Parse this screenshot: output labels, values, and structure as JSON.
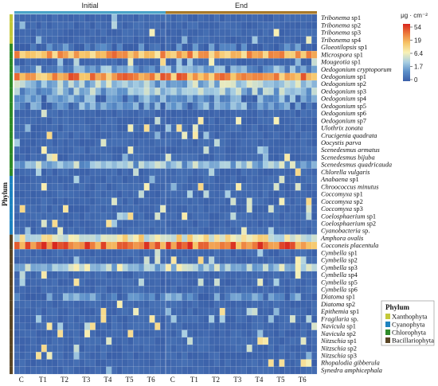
{
  "chart_data": {
    "type": "heatmap",
    "column_groups": [
      {
        "label": "Initial",
        "color": "#4aa3c8"
      },
      {
        "label": "End",
        "color": "#a8792a"
      }
    ],
    "x_tick_labels": [
      "C",
      "T1",
      "T2",
      "T3",
      "T4",
      "T5",
      "T6",
      "C",
      "T1",
      "T2",
      "T3",
      "T4",
      "T5",
      "T6"
    ],
    "columns_per_group": 28,
    "rows": [
      {
        "genus": "Tribonema",
        "epithet": "sp1",
        "phylum": "Xanthophyta",
        "base": 0.0
      },
      {
        "genus": "Tribonema",
        "epithet": "sp2",
        "phylum": "Xanthophyta",
        "base": 0.0
      },
      {
        "genus": "Tribonema",
        "epithet": "sp3",
        "phylum": "Xanthophyta",
        "base": 0.0
      },
      {
        "genus": "Tribonema",
        "epithet": "sp4",
        "phylum": "Xanthophyta",
        "base": 0.0
      },
      {
        "genus": "Gloeotilopsis",
        "epithet": "sp1",
        "phylum": "Chlorophyta",
        "base": 0.05
      },
      {
        "genus": "Microspora",
        "epithet": "sp1",
        "phylum": "Chlorophyta",
        "base": 0.7
      },
      {
        "genus": "Mougeotia",
        "epithet": "sp1",
        "phylum": "Chlorophyta",
        "base": 0.0
      },
      {
        "genus": "Oedogonium",
        "epithet": "cryptoporum",
        "phylum": "Chlorophyta",
        "base": 0.2
      },
      {
        "genus": "Oedogonium",
        "epithet": "sp1",
        "phylum": "Chlorophyta",
        "base": 0.75
      },
      {
        "genus": "Oedogonium",
        "epithet": "sp2",
        "phylum": "Chlorophyta",
        "base": 0.3
      },
      {
        "genus": "Oedogonium",
        "epithet": "sp3",
        "phylum": "Chlorophyta",
        "base": 0.25
      },
      {
        "genus": "Oedogonium",
        "epithet": "sp4",
        "phylum": "Chlorophyta",
        "base": 0.15
      },
      {
        "genus": "Oedogonium",
        "epithet": "sp5",
        "phylum": "Chlorophyta",
        "base": 0.15
      },
      {
        "genus": "Oedogonium",
        "epithet": "sp6",
        "phylum": "Chlorophyta",
        "base": 0.0
      },
      {
        "genus": "Oedogonium",
        "epithet": "sp7",
        "phylum": "Chlorophyta",
        "base": 0.0
      },
      {
        "genus": "Ulothrix",
        "epithet": "zonata",
        "phylum": "Chlorophyta",
        "base": 0.0
      },
      {
        "genus": "Crucigenia",
        "epithet": "quadrata",
        "phylum": "Chlorophyta",
        "base": 0.0
      },
      {
        "genus": "Oocystis",
        "epithet": "parva",
        "phylum": "Chlorophyta",
        "base": 0.0
      },
      {
        "genus": "Scenedesmus",
        "epithet": "armatus",
        "phylum": "Chlorophyta",
        "base": 0.0
      },
      {
        "genus": "Scenedesmus",
        "epithet": "bijuba",
        "phylum": "Chlorophyta",
        "base": 0.0
      },
      {
        "genus": "Scenedesmus",
        "epithet": "quadricauda",
        "phylum": "Chlorophyta",
        "base": 0.28
      },
      {
        "genus": "Chlorella",
        "epithet": "vulgaris",
        "phylum": "Chlorophyta",
        "base": 0.0
      },
      {
        "genus": "Anabaena",
        "epithet": "sp1",
        "phylum": "Cyanophyta",
        "base": 0.0
      },
      {
        "genus": "Chroococcus",
        "epithet": "minutus",
        "phylum": "Cyanophyta",
        "base": 0.0
      },
      {
        "genus": "Coccomyxa",
        "epithet": "sp1",
        "phylum": "Cyanophyta",
        "base": 0.0
      },
      {
        "genus": "Coccomyxa",
        "epithet": "sp2",
        "phylum": "Cyanophyta",
        "base": 0.0
      },
      {
        "genus": "Coccomyxa",
        "epithet": "sp3",
        "phylum": "Cyanophyta",
        "base": 0.0
      },
      {
        "genus": "Coelosphaerium",
        "epithet": "sp1",
        "phylum": "Cyanophyta",
        "base": 0.0
      },
      {
        "genus": "Coelosphaerium",
        "epithet": "sp2",
        "phylum": "Cyanophyta",
        "base": 0.0
      },
      {
        "genus": "Cyanobacteria",
        "epithet": "sp.",
        "phylum": "Cyanophyta",
        "base": 0.0
      },
      {
        "genus": "Amphora",
        "epithet": "ovalis",
        "phylum": "Bacillariophyta",
        "base": 0.5
      },
      {
        "genus": "Cocconeis",
        "epithet": "placentula",
        "phylum": "Bacillariophyta",
        "base": 0.82
      },
      {
        "genus": "Cymbella",
        "epithet": "sp1",
        "phylum": "Bacillariophyta",
        "base": 0.0
      },
      {
        "genus": "Cymbella",
        "epithet": "sp2",
        "phylum": "Bacillariophyta",
        "base": 0.0
      },
      {
        "genus": "Cymbella",
        "epithet": "sp3",
        "phylum": "Bacillariophyta",
        "base": 0.35
      },
      {
        "genus": "Cymbella",
        "epithet": "sp4",
        "phylum": "Bacillariophyta",
        "base": 0.0
      },
      {
        "genus": "Cymbella",
        "epithet": "sp5",
        "phylum": "Bacillariophyta",
        "base": 0.0
      },
      {
        "genus": "Cymbella",
        "epithet": "sp6",
        "phylum": "Bacillariophyta",
        "base": 0.0
      },
      {
        "genus": "Diatoma",
        "epithet": "sp1",
        "phylum": "Bacillariophyta",
        "base": 0.12
      },
      {
        "genus": "Diatoma",
        "epithet": "sp2",
        "phylum": "Bacillariophyta",
        "base": 0.0
      },
      {
        "genus": "Epithemia",
        "epithet": "sp1",
        "phylum": "Bacillariophyta",
        "base": 0.0
      },
      {
        "genus": "Fragilaria",
        "epithet": "sp.",
        "phylum": "Bacillariophyta",
        "base": 0.0
      },
      {
        "genus": "Navicula",
        "epithet": "sp1",
        "phylum": "Bacillariophyta",
        "base": 0.0
      },
      {
        "genus": "Navicula",
        "epithet": "sp2",
        "phylum": "Bacillariophyta",
        "base": 0.0
      },
      {
        "genus": "Nitzschia",
        "epithet": "sp1",
        "phylum": "Bacillariophyta",
        "base": 0.0
      },
      {
        "genus": "Nitzschia",
        "epithet": "sp2",
        "phylum": "Bacillariophyta",
        "base": 0.0
      },
      {
        "genus": "Nitzschia",
        "epithet": "sp3",
        "phylum": "Bacillariophyta",
        "base": 0.0
      },
      {
        "genus": "Rhopalodia",
        "epithet": "gibberula",
        "phylum": "Bacillariophyta",
        "base": 0.0
      },
      {
        "genus": "Synedra",
        "epithet": "amphicephala",
        "phylum": "Bacillariophyta",
        "base": 0.0
      }
    ],
    "colorbar": {
      "title": "μg · cm⁻²",
      "ticks": [
        "54",
        "19",
        "6.4",
        "1.7",
        "0"
      ],
      "colors": [
        "#3a5fa8",
        "#5b8fc9",
        "#a9cfe2",
        "#f8f1b6",
        "#f6c467",
        "#ec7a3b",
        "#d7261e"
      ]
    },
    "phylum_axis_label": "Phylum",
    "legend": {
      "title": "Phylum",
      "items": [
        {
          "label": "Xanthophyta",
          "color": "#c3c83a"
        },
        {
          "label": "Cyanophyta",
          "color": "#1f83bf"
        },
        {
          "label": "Chlorophyta",
          "color": "#2f8b2a"
        },
        {
          "label": "Bacillariophyta",
          "color": "#5a4626"
        }
      ]
    }
  }
}
